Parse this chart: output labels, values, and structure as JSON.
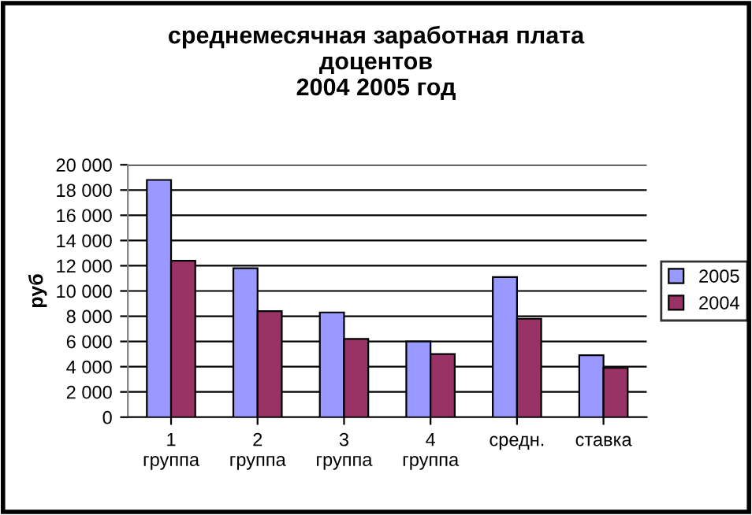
{
  "chart_data": {
    "type": "bar",
    "title": "среднемесячная заработная плата\nдоцентов\n2004 2005 год",
    "ylabel": "руб",
    "categories": [
      "1\nгруппа",
      "2\nгруппа",
      "3\nгруппа",
      "4\nгруппа",
      "средн.",
      "ставка"
    ],
    "series": [
      {
        "name": "2005",
        "color": "#9999ff",
        "values": [
          18800,
          11800,
          8300,
          6000,
          11100,
          4900
        ]
      },
      {
        "name": "2004",
        "color": "#993366",
        "values": [
          12400,
          8400,
          6200,
          5000,
          7800,
          3900
        ]
      }
    ],
    "ylim": [
      0,
      20000
    ],
    "yticks": [
      0,
      {
        "value": 2000,
        "label": "2 000"
      },
      {
        "value": 4000,
        "label": "4 000"
      },
      {
        "value": 6000,
        "label": "6 000"
      },
      {
        "value": 8000,
        "label": "8 000"
      },
      {
        "value": 10000,
        "label": "10 000"
      },
      {
        "value": 12000,
        "label": "12 000"
      },
      {
        "value": 14000,
        "label": "14 000"
      },
      {
        "value": 16000,
        "label": "16 000"
      },
      {
        "value": 18000,
        "label": "18 000"
      },
      {
        "value": 20000,
        "label": "20 000"
      }
    ],
    "grid": "y",
    "legend": "right"
  }
}
